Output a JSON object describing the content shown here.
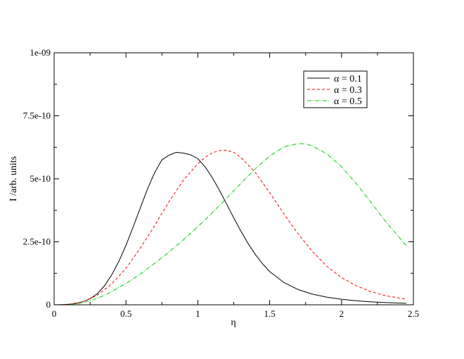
{
  "chart_data": {
    "type": "line",
    "title": "",
    "xlabel": "η",
    "ylabel": "I /arb. units",
    "xlim": [
      0,
      2.5
    ],
    "ylim": [
      0,
      1e-09
    ],
    "grid": false,
    "legend_placement": "top-right",
    "x_ticks": [
      {
        "value": 0,
        "label": "0"
      },
      {
        "value": 0.5,
        "label": "0.5"
      },
      {
        "value": 1,
        "label": "1"
      },
      {
        "value": 1.5,
        "label": "1.5"
      },
      {
        "value": 2,
        "label": "2"
      },
      {
        "value": 2.5,
        "label": "2.5"
      }
    ],
    "y_ticks": [
      {
        "value": 0,
        "label": "0"
      },
      {
        "value": 2.5e-10,
        "label": "2.5e-10"
      },
      {
        "value": 5e-10,
        "label": "5e-10"
      },
      {
        "value": 7.5e-10,
        "label": "7.5e-10"
      },
      {
        "value": 1e-09,
        "label": "1e-09"
      }
    ],
    "series": [
      {
        "name": "α = 0.1",
        "color": "#000000",
        "dash": "solid",
        "x": [
          0.0,
          0.05,
          0.1,
          0.15,
          0.2,
          0.25,
          0.3,
          0.35,
          0.4,
          0.45,
          0.5,
          0.55,
          0.6,
          0.65,
          0.7,
          0.75,
          0.8,
          0.85,
          0.9,
          0.95,
          1.0,
          1.05,
          1.1,
          1.15,
          1.2,
          1.25,
          1.3,
          1.35,
          1.4,
          1.45,
          1.5,
          1.6,
          1.7,
          1.8,
          1.9,
          2.0,
          2.1,
          2.2,
          2.3,
          2.45
        ],
        "y": [
          0.0,
          5e-13,
          2e-12,
          5e-12,
          1.2e-11,
          2.4e-11,
          4.4e-11,
          7.5e-11,
          1.18e-10,
          1.72e-10,
          2.36e-10,
          3.09e-10,
          3.85e-10,
          4.6e-10,
          5.25e-10,
          5.75e-10,
          5.94e-10,
          6.05e-10,
          6.02e-10,
          5.95e-10,
          5.8e-10,
          5.48e-10,
          5.05e-10,
          4.55e-10,
          4e-10,
          3.45e-10,
          2.92e-10,
          2.43e-10,
          2e-10,
          1.63e-10,
          1.32e-10,
          8.8e-11,
          6e-11,
          4.2e-11,
          3e-11,
          2.2e-11,
          1.6e-11,
          1.2e-11,
          9e-12,
          6e-12
        ]
      },
      {
        "name": "α = 0.3",
        "color": "#ff0000",
        "dash": "dashed",
        "x": [
          0.0,
          0.1,
          0.2,
          0.3,
          0.4,
          0.5,
          0.6,
          0.7,
          0.8,
          0.9,
          1.0,
          1.05,
          1.1,
          1.15,
          1.2,
          1.25,
          1.3,
          1.4,
          1.5,
          1.6,
          1.7,
          1.8,
          1.9,
          2.0,
          2.1,
          2.2,
          2.3,
          2.45
        ],
        "y": [
          0.0,
          2e-12,
          1.2e-11,
          3.8e-11,
          8.2e-11,
          1.45e-10,
          2.25e-10,
          3.15e-10,
          4.1e-10,
          4.95e-10,
          5.6e-10,
          5.85e-10,
          6.03e-10,
          6.12e-10,
          6.13e-10,
          6.05e-10,
          5.85e-10,
          5.25e-10,
          4.45e-10,
          3.6e-10,
          2.8e-10,
          2.1e-10,
          1.52e-10,
          1.08e-10,
          7.6e-11,
          5.3e-11,
          3.7e-11,
          2.2e-11
        ]
      },
      {
        "name": "α = 0.5",
        "color": "#00cc00",
        "dash": "dashdot",
        "x": [
          0.0,
          0.1,
          0.2,
          0.3,
          0.4,
          0.5,
          0.6,
          0.7,
          0.8,
          0.9,
          1.0,
          1.1,
          1.2,
          1.3,
          1.4,
          1.5,
          1.6,
          1.7,
          1.75,
          1.8,
          1.9,
          2.0,
          2.1,
          2.2,
          2.3,
          2.45
        ],
        "y": [
          0.0,
          1e-12,
          8e-12,
          2.5e-11,
          5.2e-11,
          8.5e-11,
          1.22e-10,
          1.65e-10,
          2.1e-10,
          2.58e-10,
          3.1e-10,
          3.65e-10,
          4.23e-10,
          4.82e-10,
          5.4e-10,
          5.9e-10,
          6.27e-10,
          6.4e-10,
          6.38e-10,
          6.3e-10,
          5.98e-10,
          5.48e-10,
          4.83e-10,
          4.1e-10,
          3.35e-10,
          2.35e-10
        ]
      }
    ]
  }
}
